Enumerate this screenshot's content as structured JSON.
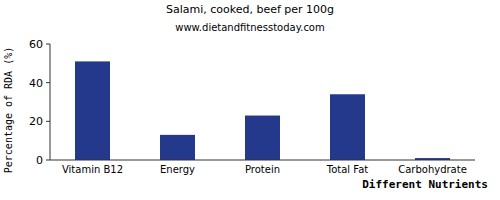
{
  "chart_data": {
    "type": "bar",
    "title": "Salami, cooked, beef per 100g",
    "subtitle": "www.dietandfitnesstoday.com",
    "x_label": "Different Nutrients",
    "y_label": "Percentage of RDA (%)",
    "categories": [
      "Vitamin B12",
      "Energy",
      "Protein",
      "Total Fat",
      "Carbohydrate"
    ],
    "values": [
      51,
      13,
      23,
      34,
      1
    ],
    "color": "#24398c",
    "ylim": [
      0,
      60
    ],
    "yticks": [
      0,
      20,
      40,
      60
    ],
    "grid": false
  }
}
